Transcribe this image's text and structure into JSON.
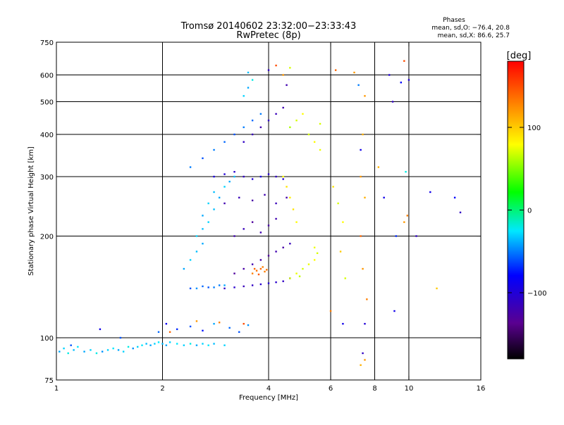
{
  "chart_data": {
    "type": "scatter",
    "title": "Tromsø 20140602 23:32:00−23:33:43",
    "subtitle": "RwPretec (8p)",
    "xlabel": "Frequency [MHz]",
    "ylabel": "Stationary phase Virtual Height [km]",
    "x_scale": "log",
    "y_scale": "log",
    "xlim": [
      1,
      16
    ],
    "ylim": [
      75,
      750
    ],
    "x_ticks": [
      1,
      2,
      4,
      6,
      8,
      10,
      16
    ],
    "x_tick_labels": [
      "1",
      "2",
      "4",
      "6",
      "8",
      "10",
      "16"
    ],
    "x_grid": [
      2,
      4,
      6,
      8,
      10
    ],
    "y_ticks": [
      75,
      100,
      200,
      300,
      400,
      500,
      600,
      750
    ],
    "y_tick_labels": [
      "75",
      "100",
      "200",
      "300",
      "400",
      "500",
      "600",
      "750"
    ],
    "y_grid": [
      100,
      200,
      300,
      400,
      500,
      600
    ],
    "grid": true,
    "stats": {
      "heading": "Phases",
      "line_o": "mean, sd,O: −76.4, 20.8",
      "line_x": "mean, sd,X:  86.6, 25.7"
    },
    "colorbar": {
      "label": "[deg]",
      "range": [
        -180,
        180
      ],
      "ticks": [
        100,
        0,
        -100
      ],
      "tick_labels": [
        "100",
        "0",
        "−100"
      ],
      "colormap": "rainbow"
    },
    "series": [
      {
        "color_by": "phase_deg",
        "points": [
          [
            1.02,
            91,
            -40
          ],
          [
            1.05,
            93,
            -30
          ],
          [
            1.08,
            90,
            -20
          ],
          [
            1.12,
            92,
            -35
          ],
          [
            1.15,
            94,
            -25
          ],
          [
            1.2,
            91,
            -40
          ],
          [
            1.25,
            92,
            -30
          ],
          [
            1.3,
            90,
            -20
          ],
          [
            1.35,
            91,
            -45
          ],
          [
            1.4,
            92,
            -30
          ],
          [
            1.45,
            93,
            -25
          ],
          [
            1.5,
            92,
            -40
          ],
          [
            1.55,
            91,
            -30
          ],
          [
            1.6,
            94,
            -20
          ],
          [
            1.65,
            93,
            -45
          ],
          [
            1.7,
            94,
            -30
          ],
          [
            1.75,
            95,
            -25
          ],
          [
            1.8,
            96,
            -35
          ],
          [
            1.85,
            95,
            -40
          ],
          [
            1.9,
            96,
            -30
          ],
          [
            1.95,
            97,
            -25
          ],
          [
            2.0,
            96,
            -35
          ],
          [
            2.05,
            95,
            -40
          ],
          [
            2.1,
            97,
            -30
          ],
          [
            2.2,
            96,
            -25
          ],
          [
            2.3,
            95,
            -30
          ],
          [
            2.4,
            96,
            -20
          ],
          [
            2.5,
            95,
            -40
          ],
          [
            2.6,
            96,
            -30
          ],
          [
            2.7,
            95,
            -25
          ],
          [
            2.8,
            96,
            -35
          ],
          [
            3.0,
            95,
            -30
          ],
          [
            1.1,
            95,
            -60
          ],
          [
            1.33,
            106,
            -90
          ],
          [
            1.52,
            100,
            -60
          ],
          [
            1.95,
            104,
            -55
          ],
          [
            2.05,
            110,
            -85
          ],
          [
            2.2,
            106,
            -70
          ],
          [
            2.4,
            108,
            -60
          ],
          [
            2.6,
            105,
            -75
          ],
          [
            2.8,
            110,
            -40
          ],
          [
            3.1,
            107,
            -55
          ],
          [
            3.3,
            104,
            -60
          ],
          [
            3.5,
            109,
            -45
          ],
          [
            2.1,
            104,
            140
          ],
          [
            2.5,
            112,
            120
          ],
          [
            2.9,
            111,
            130
          ],
          [
            3.4,
            110,
            150
          ],
          [
            2.4,
            140,
            -60
          ],
          [
            2.6,
            142,
            -55
          ],
          [
            2.8,
            141,
            -50
          ],
          [
            3.0,
            143,
            -40
          ],
          [
            2.5,
            140,
            -45
          ],
          [
            2.7,
            141,
            -60
          ],
          [
            2.9,
            143,
            -50
          ],
          [
            3.0,
            140,
            -110
          ],
          [
            3.2,
            141,
            -105
          ],
          [
            3.4,
            142,
            -115
          ],
          [
            3.6,
            143,
            -110
          ],
          [
            3.8,
            144,
            -105
          ],
          [
            4.0,
            145,
            -100
          ],
          [
            4.2,
            146,
            -105
          ],
          [
            4.4,
            147,
            -110
          ],
          [
            4.6,
            150,
            -105
          ],
          [
            3.2,
            155,
            -130
          ],
          [
            3.4,
            160,
            -125
          ],
          [
            3.6,
            165,
            -120
          ],
          [
            3.8,
            170,
            -125
          ],
          [
            4.0,
            175,
            -130
          ],
          [
            4.2,
            180,
            -120
          ],
          [
            4.4,
            185,
            -125
          ],
          [
            4.6,
            190,
            -115
          ],
          [
            3.6,
            155,
            130
          ],
          [
            3.7,
            158,
            135
          ],
          [
            3.8,
            160,
            140
          ],
          [
            3.9,
            157,
            130
          ],
          [
            3.75,
            154,
            145
          ],
          [
            3.85,
            162,
            130
          ],
          [
            3.65,
            160,
            140
          ],
          [
            3.95,
            159,
            135
          ],
          [
            4.6,
            150,
            70
          ],
          [
            4.8,
            155,
            75
          ],
          [
            5.0,
            160,
            70
          ],
          [
            5.2,
            165,
            75
          ],
          [
            5.4,
            170,
            80
          ],
          [
            5.5,
            178,
            70
          ],
          [
            5.4,
            185,
            75
          ],
          [
            4.9,
            152,
            65
          ],
          [
            2.3,
            160,
            -40
          ],
          [
            2.4,
            170,
            -30
          ],
          [
            2.5,
            180,
            -35
          ],
          [
            2.6,
            190,
            -40
          ],
          [
            2.5,
            200,
            -30
          ],
          [
            2.6,
            210,
            -35
          ],
          [
            2.7,
            220,
            -30
          ],
          [
            2.6,
            230,
            -40
          ],
          [
            2.8,
            240,
            -35
          ],
          [
            2.7,
            250,
            -30
          ],
          [
            2.9,
            260,
            -40
          ],
          [
            2.8,
            270,
            -35
          ],
          [
            3.0,
            280,
            -30
          ],
          [
            3.1,
            290,
            -40
          ],
          [
            3.2,
            300,
            -35
          ],
          [
            2.4,
            320,
            -50
          ],
          [
            2.6,
            340,
            -60
          ],
          [
            2.8,
            360,
            -50
          ],
          [
            3.0,
            380,
            -55
          ],
          [
            3.2,
            400,
            -60
          ],
          [
            3.4,
            420,
            -50
          ],
          [
            3.6,
            440,
            -55
          ],
          [
            3.8,
            460,
            -50
          ],
          [
            2.8,
            300,
            -95
          ],
          [
            3.0,
            305,
            -100
          ],
          [
            3.2,
            310,
            -105
          ],
          [
            3.4,
            300,
            -110
          ],
          [
            3.6,
            295,
            -100
          ],
          [
            3.8,
            300,
            -95
          ],
          [
            4.0,
            305,
            -105
          ],
          [
            4.2,
            300,
            -110
          ],
          [
            4.4,
            295,
            -100
          ],
          [
            3.0,
            250,
            -120
          ],
          [
            3.3,
            260,
            -115
          ],
          [
            3.6,
            255,
            -125
          ],
          [
            3.9,
            265,
            -120
          ],
          [
            4.2,
            250,
            -115
          ],
          [
            4.5,
            260,
            -125
          ],
          [
            3.2,
            200,
            -120
          ],
          [
            3.4,
            210,
            -115
          ],
          [
            3.6,
            220,
            -130
          ],
          [
            3.8,
            205,
            -120
          ],
          [
            4.0,
            215,
            -125
          ],
          [
            4.2,
            225,
            -120
          ],
          [
            3.4,
            380,
            -110
          ],
          [
            3.6,
            400,
            -115
          ],
          [
            3.8,
            420,
            -120
          ],
          [
            4.0,
            440,
            -110
          ],
          [
            4.2,
            460,
            -115
          ],
          [
            4.4,
            480,
            -120
          ],
          [
            3.4,
            520,
            -30
          ],
          [
            3.5,
            550,
            -40
          ],
          [
            3.6,
            580,
            -20
          ],
          [
            3.5,
            610,
            -35
          ],
          [
            4.6,
            420,
            60
          ],
          [
            4.8,
            440,
            70
          ],
          [
            5.0,
            460,
            80
          ],
          [
            5.2,
            400,
            70
          ],
          [
            5.4,
            380,
            80
          ],
          [
            5.6,
            360,
            75
          ],
          [
            5.6,
            430,
            70
          ],
          [
            4.4,
            300,
            80
          ],
          [
            4.5,
            280,
            90
          ],
          [
            4.6,
            260,
            85
          ],
          [
            4.7,
            240,
            90
          ],
          [
            4.8,
            220,
            80
          ],
          [
            4.0,
            620,
            -110
          ],
          [
            4.2,
            640,
            150
          ],
          [
            4.4,
            600,
            120
          ],
          [
            4.5,
            560,
            -120
          ],
          [
            4.6,
            630,
            70
          ],
          [
            6.2,
            620,
            140
          ],
          [
            7.0,
            610,
            120
          ],
          [
            7.2,
            560,
            -50
          ],
          [
            7.5,
            520,
            120
          ],
          [
            7.4,
            400,
            110
          ],
          [
            7.3,
            360,
            -90
          ],
          [
            6.1,
            280,
            90
          ],
          [
            6.3,
            250,
            70
          ],
          [
            6.5,
            220,
            80
          ],
          [
            6.4,
            180,
            100
          ],
          [
            6.6,
            150,
            70
          ],
          [
            6.0,
            120,
            130
          ],
          [
            6.5,
            110,
            -90
          ],
          [
            7.3,
            300,
            120
          ],
          [
            7.5,
            260,
            110
          ],
          [
            7.3,
            200,
            140
          ],
          [
            7.4,
            160,
            120
          ],
          [
            7.6,
            130,
            130
          ],
          [
            7.5,
            110,
            -100
          ],
          [
            7.4,
            90,
            -110
          ],
          [
            7.5,
            86,
            120
          ],
          [
            7.3,
            83,
            110
          ],
          [
            8.2,
            320,
            110
          ],
          [
            8.5,
            260,
            -90
          ],
          [
            8.8,
            600,
            -100
          ],
          [
            9.0,
            500,
            -110
          ],
          [
            9.2,
            200,
            -70
          ],
          [
            9.1,
            120,
            -90
          ],
          [
            9.5,
            570,
            -80
          ],
          [
            9.8,
            310,
            -20
          ],
          [
            10.0,
            580,
            -100
          ],
          [
            9.7,
            660,
            150
          ],
          [
            9.9,
            230,
            130
          ],
          [
            9.7,
            220,
            120
          ],
          [
            10.5,
            200,
            -110
          ],
          [
            11.5,
            270,
            -90
          ],
          [
            12.0,
            140,
            100
          ],
          [
            13.5,
            260,
            -80
          ],
          [
            14.0,
            235,
            -110
          ]
        ]
      }
    ]
  }
}
